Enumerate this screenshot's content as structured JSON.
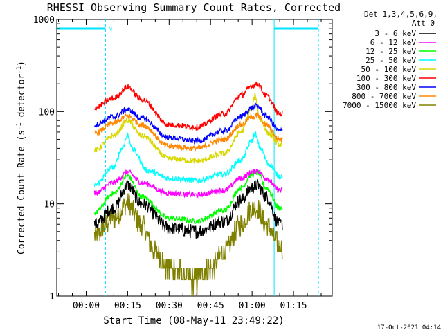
{
  "chart_data": {
    "type": "line",
    "title": "RHESSI Observing Summary Count Rates, Corrected",
    "xlabel": "Start Time (08-May-11 23:49:22)",
    "ylabel": "Corrected Count Rate (s⁻¹ detector⁻¹)",
    "ylabel_main": "Corrected Count Rate (s",
    "ylabel_sup1": "-1",
    "ylabel_mid": " detector",
    "ylabel_sup2": "-1",
    "ylabel_end": ")",
    "y_scale": "log",
    "ylim": [
      1,
      1000
    ],
    "y_ticks": [
      {
        "value": 1,
        "label": "1"
      },
      {
        "value": 10,
        "label": "10"
      },
      {
        "value": 100,
        "label": "100"
      },
      {
        "value": 1000,
        "label": "1000"
      }
    ],
    "xlim": [
      "23:49:22",
      "01:29:00"
    ],
    "x_ticks": [
      {
        "value": "00:00",
        "label": "00:00"
      },
      {
        "value": "00:15",
        "label": "00:15"
      },
      {
        "value": "00:30",
        "label": "00:30"
      },
      {
        "value": "00:45",
        "label": "00:45"
      },
      {
        "value": "01:00",
        "label": "01:00"
      },
      {
        "value": "01:15",
        "label": "01:15"
      }
    ],
    "detector_label": "Det 1,3,4,5,6,9,",
    "attenuator_label": "Att 0",
    "legend_position": "right",
    "night_marker_label": "N",
    "night_intervals": [
      [
        "23:49:22",
        "00:07"
      ],
      [
        "01:08",
        "01:24"
      ]
    ],
    "data_start": "00:03",
    "data_end": "01:11",
    "series": [
      {
        "name": "3 - 6 keV",
        "color": "#000000",
        "x": [
          "00:03",
          "00:10",
          "00:15",
          "00:20",
          "00:30",
          "00:40",
          "00:50",
          "00:56",
          "01:00",
          "01:02",
          "01:05",
          "01:10"
        ],
        "values": [
          6,
          9,
          16,
          10,
          5.5,
          5,
          6.5,
          11,
          15,
          16,
          12,
          6
        ]
      },
      {
        "name": "6 - 12 keV",
        "color": "#ff00ff",
        "x": [
          "00:03",
          "00:10",
          "00:15",
          "00:20",
          "00:30",
          "00:40",
          "00:50",
          "00:56",
          "01:00",
          "01:02",
          "01:05",
          "01:10"
        ],
        "values": [
          13,
          17,
          22,
          17,
          13,
          12.5,
          14,
          19,
          22,
          23,
          19,
          14
        ]
      },
      {
        "name": "12 - 25 keV",
        "color": "#00ff00",
        "x": [
          "00:03",
          "00:10",
          "00:15",
          "00:20",
          "00:30",
          "00:40",
          "00:50",
          "00:56",
          "01:00",
          "01:02",
          "01:05",
          "01:10"
        ],
        "values": [
          8,
          13,
          20,
          12,
          7,
          6.5,
          8.5,
          15,
          21,
          22,
          15,
          9
        ]
      },
      {
        "name": "25 - 50 keV",
        "color": "#00ffff",
        "x": [
          "00:03",
          "00:10",
          "00:13",
          "00:15",
          "00:17",
          "00:22",
          "00:30",
          "00:40",
          "00:50",
          "00:56",
          "01:00",
          "01:01",
          "01:03",
          "01:06",
          "01:10"
        ],
        "values": [
          16,
          25,
          40,
          55,
          38,
          23,
          19,
          18,
          21,
          30,
          48,
          58,
          40,
          27,
          20
        ]
      },
      {
        "name": "50 - 100 keV",
        "color": "#d8d800",
        "x": [
          "00:03",
          "00:10",
          "00:15",
          "00:20",
          "00:30",
          "00:40",
          "00:50",
          "00:56",
          "01:00",
          "01:01",
          "01:03",
          "01:06",
          "01:10"
        ],
        "values": [
          38,
          55,
          80,
          55,
          31,
          29,
          35,
          60,
          110,
          150,
          80,
          58,
          44
        ]
      },
      {
        "name": "100 - 300 keV",
        "color": "#ff0000",
        "x": [
          "00:03",
          "00:10",
          "00:15",
          "00:20",
          "00:30",
          "00:40",
          "00:50",
          "00:56",
          "01:00",
          "01:02",
          "01:05",
          "01:10"
        ],
        "values": [
          110,
          140,
          185,
          135,
          72,
          68,
          95,
          150,
          190,
          200,
          150,
          95
        ]
      },
      {
        "name": "300 - 800 keV",
        "color": "#0000ff",
        "x": [
          "00:03",
          "00:10",
          "00:15",
          "00:20",
          "00:30",
          "00:40",
          "00:50",
          "00:56",
          "01:00",
          "01:02",
          "01:05",
          "01:10"
        ],
        "values": [
          72,
          88,
          105,
          85,
          52,
          48,
          62,
          88,
          110,
          115,
          90,
          62
        ]
      },
      {
        "name": "800 - 7000 keV",
        "color": "#ff8800",
        "x": [
          "00:03",
          "00:10",
          "00:15",
          "00:20",
          "00:30",
          "00:40",
          "00:50",
          "00:56",
          "01:00",
          "01:02",
          "01:05",
          "01:10"
        ],
        "values": [
          58,
          75,
          90,
          72,
          42,
          40,
          50,
          72,
          88,
          90,
          72,
          50
        ]
      },
      {
        "name": "7000 - 15000 keV",
        "color": "#808000",
        "x": [
          "00:03",
          "00:10",
          "00:15",
          "00:20",
          "00:25",
          "00:30",
          "00:40",
          "00:45",
          "00:50",
          "00:56",
          "01:00",
          "01:02",
          "01:05",
          "01:10"
        ],
        "values": [
          4.5,
          7,
          10,
          6,
          3,
          2,
          1.5,
          2,
          3,
          6,
          9,
          9,
          6,
          3.5
        ]
      }
    ],
    "footer_timestamp": "17-Oct-2021 04:14"
  }
}
